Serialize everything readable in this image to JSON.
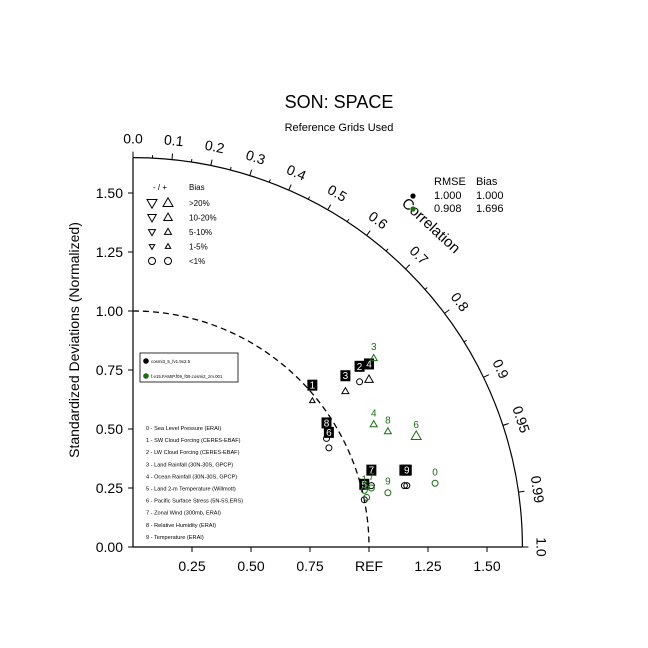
{
  "chart_data": {
    "type": "scatter",
    "title": "SON: SPACE",
    "subtitle": "Reference Grids Used",
    "ylabel": "Standardized Deviations (Normalized)",
    "correlation_label": "Correlation",
    "ref_label": "REF",
    "std_ticks": [
      "0.00",
      "0.25",
      "0.50",
      "0.75",
      "1.00",
      "1.25",
      "1.50"
    ],
    "x_tick_labels": [
      "0.25",
      "0.50",
      "0.75",
      "REF",
      "1.25",
      "1.50"
    ],
    "corr_ticks": [
      "0.0",
      "0.1",
      "0.2",
      "0.3",
      "0.4",
      "0.5",
      "0.6",
      "0.7",
      "0.8",
      "0.9",
      "0.95",
      "0.99",
      "1.0"
    ],
    "std_range": [
      0,
      1.65
    ],
    "bias_legend": {
      "header_sign": "- / +",
      "header_bias": "Bias",
      "entries": [
        ">20%",
        "10-20%",
        "5-10%",
        "1-5%",
        "<1%"
      ]
    },
    "stats_header": {
      "rmse": "RMSE",
      "bias": "Bias"
    },
    "cases": [
      {
        "name": "cosmi3_5_fv1.9x2.5",
        "color": "#000000",
        "rmse": "1.000",
        "bias": "1.000"
      },
      {
        "name": "f.e15.FAMIP.f09_f09.cosmi2_zm.001",
        "color": "#1a6e12",
        "rmse": "0.908",
        "bias": "1.696"
      }
    ],
    "variables": [
      "0 - Sea Level Pressure (ERAI)",
      "1 - SW Cloud Forcing (CERES-EBAF)",
      "2 - LW Cloud Forcing (CERES-EBAF)",
      "3 - Land Rainfall (30N-30S, GPCP)",
      "4 - Ocean Rainfall (30N-30S, GPCP)",
      "5 - Land 2-m Temperature (Willmott)",
      "6 - Pacific Surface Stress (5N-5S,ERS)",
      "7 - Zonal Wind (300mb, ERAI)",
      "8 - Relative Humidity (ERAI)",
      "9 - Temperature (ERAI)"
    ],
    "series": [
      {
        "name": "cosmi3_5_fv1.9x2.5",
        "color": "#000000",
        "points": [
          {
            "label": "0",
            "x": 1.15,
            "y": 0.26,
            "sym": "circle"
          },
          {
            "label": "1",
            "x": 0.76,
            "y": 0.62,
            "sym": "up4"
          },
          {
            "label": "2",
            "x": 0.96,
            "y": 0.7,
            "sym": "circle"
          },
          {
            "label": "3",
            "x": 0.9,
            "y": 0.66,
            "sym": "up3"
          },
          {
            "label": "4",
            "x": 1.0,
            "y": 0.71,
            "sym": "up2"
          },
          {
            "label": "5",
            "x": 0.98,
            "y": 0.2,
            "sym": "circle"
          },
          {
            "label": "6",
            "x": 0.83,
            "y": 0.42,
            "sym": "circle"
          },
          {
            "label": "7",
            "x": 1.01,
            "y": 0.26,
            "sym": "circle"
          },
          {
            "label": "8",
            "x": 0.82,
            "y": 0.46,
            "sym": "circle"
          },
          {
            "label": "9",
            "x": 1.16,
            "y": 0.26,
            "sym": "circle"
          }
        ]
      },
      {
        "name": "f.e15.FAMIP.f09_f09.cosmi2_zm.001",
        "color": "#1a6e12",
        "points": [
          {
            "label": "0",
            "x": 1.28,
            "y": 0.27,
            "sym": "circle"
          },
          {
            "label": "1",
            "x": 0.98,
            "y": 0.24,
            "sym": "circle"
          },
          {
            "label": "3",
            "x": 1.02,
            "y": 0.8,
            "sym": "up3"
          },
          {
            "label": "4",
            "x": 1.02,
            "y": 0.52,
            "sym": "up3"
          },
          {
            "label": "5",
            "x": 0.99,
            "y": 0.21,
            "sym": "circle"
          },
          {
            "label": "6",
            "x": 1.2,
            "y": 0.47,
            "sym": "up1"
          },
          {
            "label": "7",
            "x": 1.01,
            "y": 0.25,
            "sym": "circle"
          },
          {
            "label": "8",
            "x": 1.08,
            "y": 0.49,
            "sym": "up3"
          },
          {
            "label": "9",
            "x": 1.08,
            "y": 0.23,
            "sym": "circle"
          }
        ]
      }
    ]
  }
}
